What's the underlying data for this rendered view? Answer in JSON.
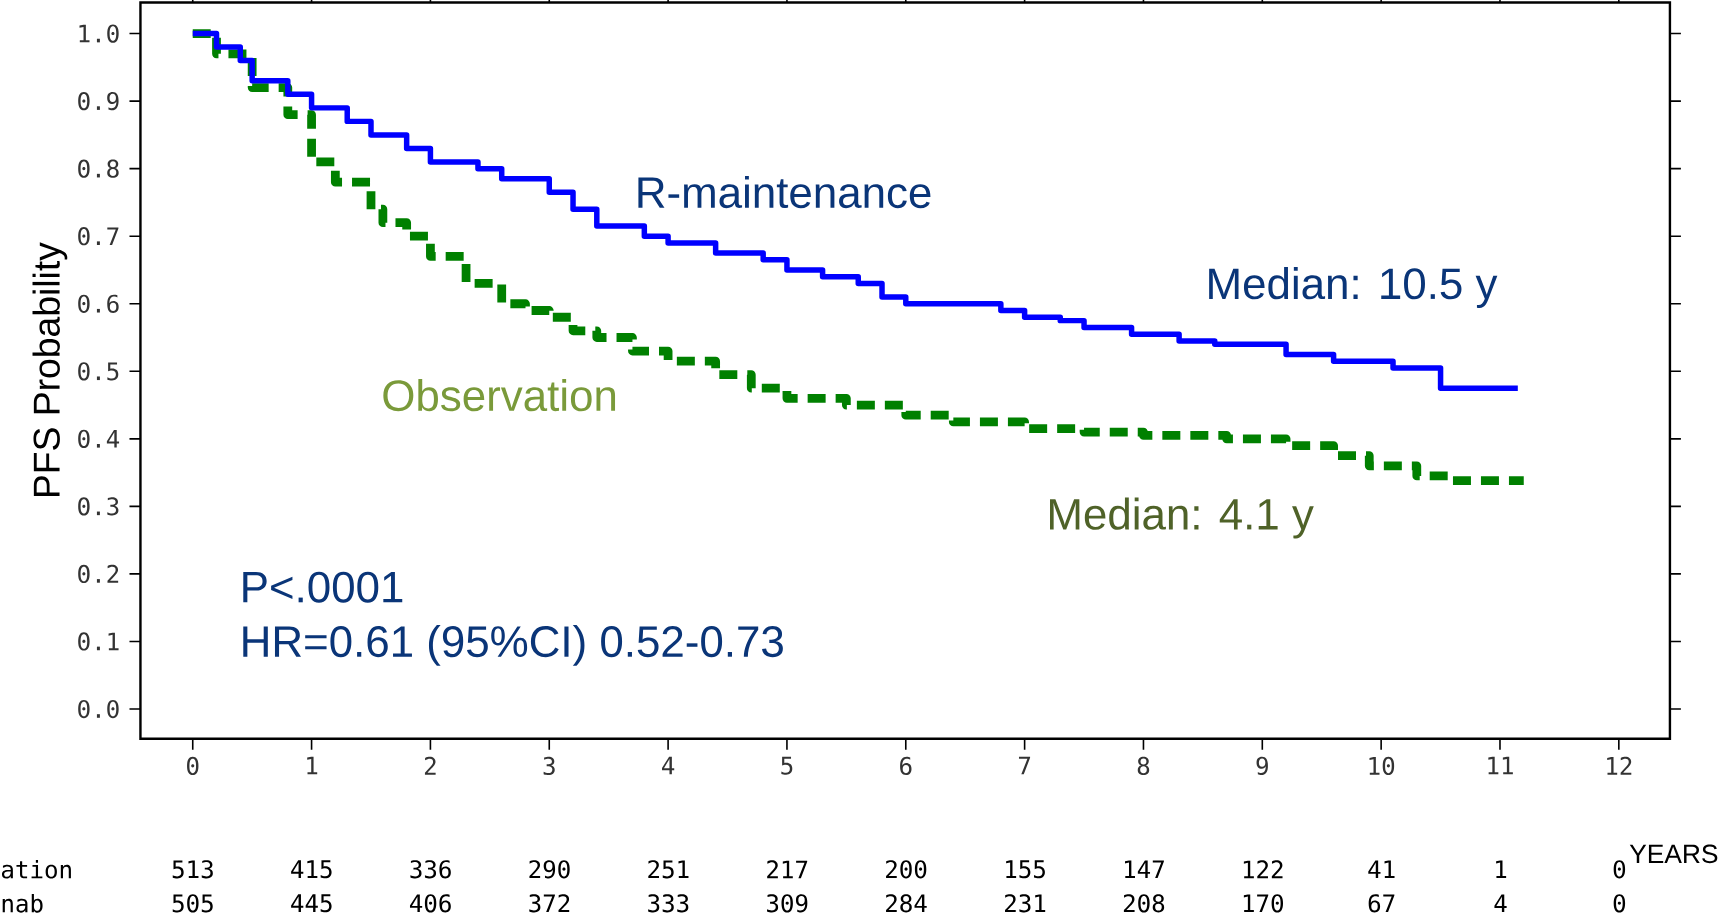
{
  "chart_data": {
    "type": "step",
    "ylabel": "PFS Probability",
    "xlabel": "YEARS",
    "xlim": [
      -0.44,
      12.43
    ],
    "ylim": [
      -0.044,
      1.046
    ],
    "xticks": [
      0,
      1,
      2,
      3,
      4,
      5,
      6,
      7,
      8,
      9,
      10,
      11,
      12
    ],
    "yticks": [
      {
        "value": 0,
        "label": "0.0"
      },
      {
        "value": 0.1,
        "label": "0.1"
      },
      {
        "value": 0.2,
        "label": "0.2"
      },
      {
        "value": 0.3,
        "label": "0.3"
      },
      {
        "value": 0.4,
        "label": "0.4"
      },
      {
        "value": 0.5,
        "label": "0.5"
      },
      {
        "value": 0.6,
        "label": "0.6"
      },
      {
        "value": 0.7,
        "label": "0.7"
      },
      {
        "value": 0.8,
        "label": "0.8"
      },
      {
        "value": 0.9,
        "label": "0.9"
      },
      {
        "value": 1,
        "label": "1.0"
      }
    ],
    "grid": false,
    "legend": false,
    "marker": "none",
    "series": [
      {
        "name": "R-maintenance",
        "color": "#0000ff",
        "line_style": "solid",
        "x": [
          0,
          0.2,
          0.4,
          0.5,
          0.8,
          1.0,
          1.3,
          1.5,
          1.8,
          2.0,
          2.4,
          2.6,
          3.0,
          3.2,
          3.4,
          3.8,
          4.0,
          4.4,
          4.8,
          5.0,
          5.3,
          5.6,
          5.8,
          6.0,
          6.8,
          7.0,
          7.3,
          7.5,
          7.9,
          8.3,
          8.6,
          9.2,
          9.6,
          10.1,
          10.5,
          11.15
        ],
        "values": [
          1.0,
          0.98,
          0.96,
          0.93,
          0.91,
          0.89,
          0.87,
          0.85,
          0.83,
          0.81,
          0.8,
          0.785,
          0.765,
          0.74,
          0.715,
          0.7,
          0.69,
          0.675,
          0.665,
          0.65,
          0.64,
          0.63,
          0.61,
          0.6,
          0.59,
          0.58,
          0.575,
          0.565,
          0.555,
          0.545,
          0.54,
          0.525,
          0.515,
          0.505,
          0.475,
          0.475
        ]
      },
      {
        "name": "Observation",
        "color": "#008000",
        "line_style": "dashed",
        "x": [
          0,
          0.2,
          0.5,
          0.8,
          1.0,
          1.2,
          1.5,
          1.6,
          1.8,
          2.0,
          2.3,
          2.6,
          2.8,
          3.0,
          3.2,
          3.4,
          3.7,
          4.0,
          4.4,
          4.7,
          5.0,
          5.5,
          6.0,
          6.4,
          7.0,
          7.5,
          8.0,
          8.7,
          9.2,
          9.6,
          9.9,
          10.3,
          10.6,
          11.2
        ],
        "values": [
          1.0,
          0.97,
          0.92,
          0.88,
          0.81,
          0.78,
          0.74,
          0.72,
          0.7,
          0.67,
          0.63,
          0.6,
          0.59,
          0.58,
          0.56,
          0.55,
          0.53,
          0.515,
          0.495,
          0.475,
          0.46,
          0.45,
          0.435,
          0.425,
          0.415,
          0.41,
          0.405,
          0.4,
          0.39,
          0.375,
          0.36,
          0.345,
          0.338,
          0.338
        ]
      }
    ],
    "annotations": [
      "Median: 10.5 y",
      "Median: 4.1  y",
      "P<.0001",
      "HR=0.61 (95%CI) 0.52-0.73",
      "ation",
      "513",
      "415",
      "336",
      "290",
      "251",
      "217",
      "200",
      "155",
      "147",
      "122",
      "41",
      "1",
      "0",
      "nab",
      "505",
      "445",
      "406",
      "372",
      "333",
      "309",
      "284",
      "231",
      "208",
      "170",
      "67",
      "4",
      "0"
    ]
  }
}
